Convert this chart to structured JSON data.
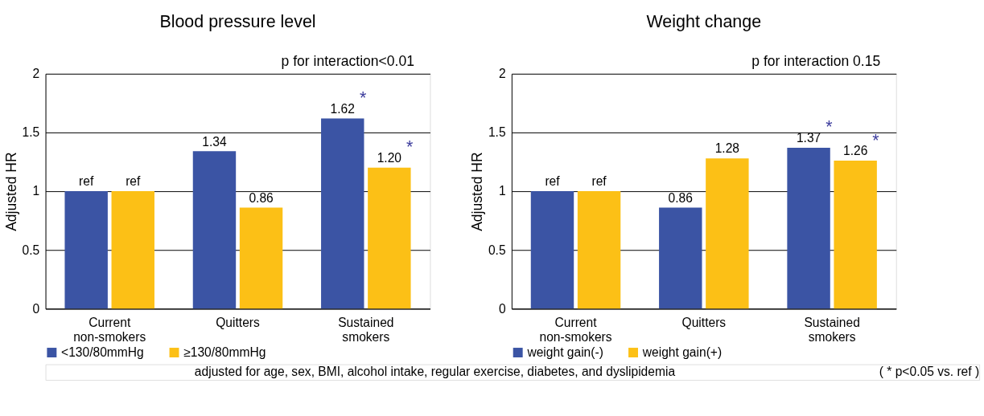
{
  "chart_data": [
    {
      "type": "bar",
      "title": "Blood pressure level",
      "ylabel": "Adjusted HR",
      "categories": [
        "Current non-smokers",
        "Quitters",
        "Sustained smokers"
      ],
      "series": [
        {
          "name": "<130/80mmHg",
          "color": "#3b54a4",
          "values": [
            1,
            1.34,
            1.62
          ],
          "value_labels": [
            "ref",
            "1.34",
            "1.62"
          ]
        },
        {
          "name": "≥130/80mmHg",
          "color": "#fcc016",
          "values": [
            1,
            0.86,
            1.2
          ],
          "value_labels": [
            "ref",
            "0.86",
            "1.20"
          ]
        }
      ],
      "ylim": [
        0,
        2
      ],
      "yticks": [
        0,
        0.5,
        1,
        1.5,
        2
      ],
      "grid": "y",
      "legend": "bottom",
      "annotations": [
        "p for interaction<0.01",
        "adjusted for age, sex, BMI, alcohol intake, regular exercise, diabetes, and dyslipidemia",
        "*",
        "*"
      ]
    },
    {
      "type": "bar",
      "title": "Weight change",
      "ylabel": "Adjusted HR",
      "categories": [
        "Current non-smokers",
        "Quitters",
        "Sustained smokers"
      ],
      "series": [
        {
          "name": "weight gain(-)",
          "color": "#3b54a4",
          "values": [
            1,
            0.86,
            1.37
          ],
          "value_labels": [
            "ref",
            "0.86",
            "1.37"
          ]
        },
        {
          "name": "weight gain(+)",
          "color": "#fcc016",
          "values": [
            1,
            1.28,
            1.26
          ],
          "value_labels": [
            "ref",
            "1.28",
            "1.26"
          ]
        }
      ],
      "ylim": [
        0,
        2
      ],
      "yticks": [
        0,
        0.5,
        1,
        1.5,
        2
      ],
      "grid": "y",
      "legend": "bottom",
      "annotations": [
        "p for interaction 0.15",
        "( * p<0.05 vs. ref )",
        "*",
        "*"
      ]
    }
  ]
}
